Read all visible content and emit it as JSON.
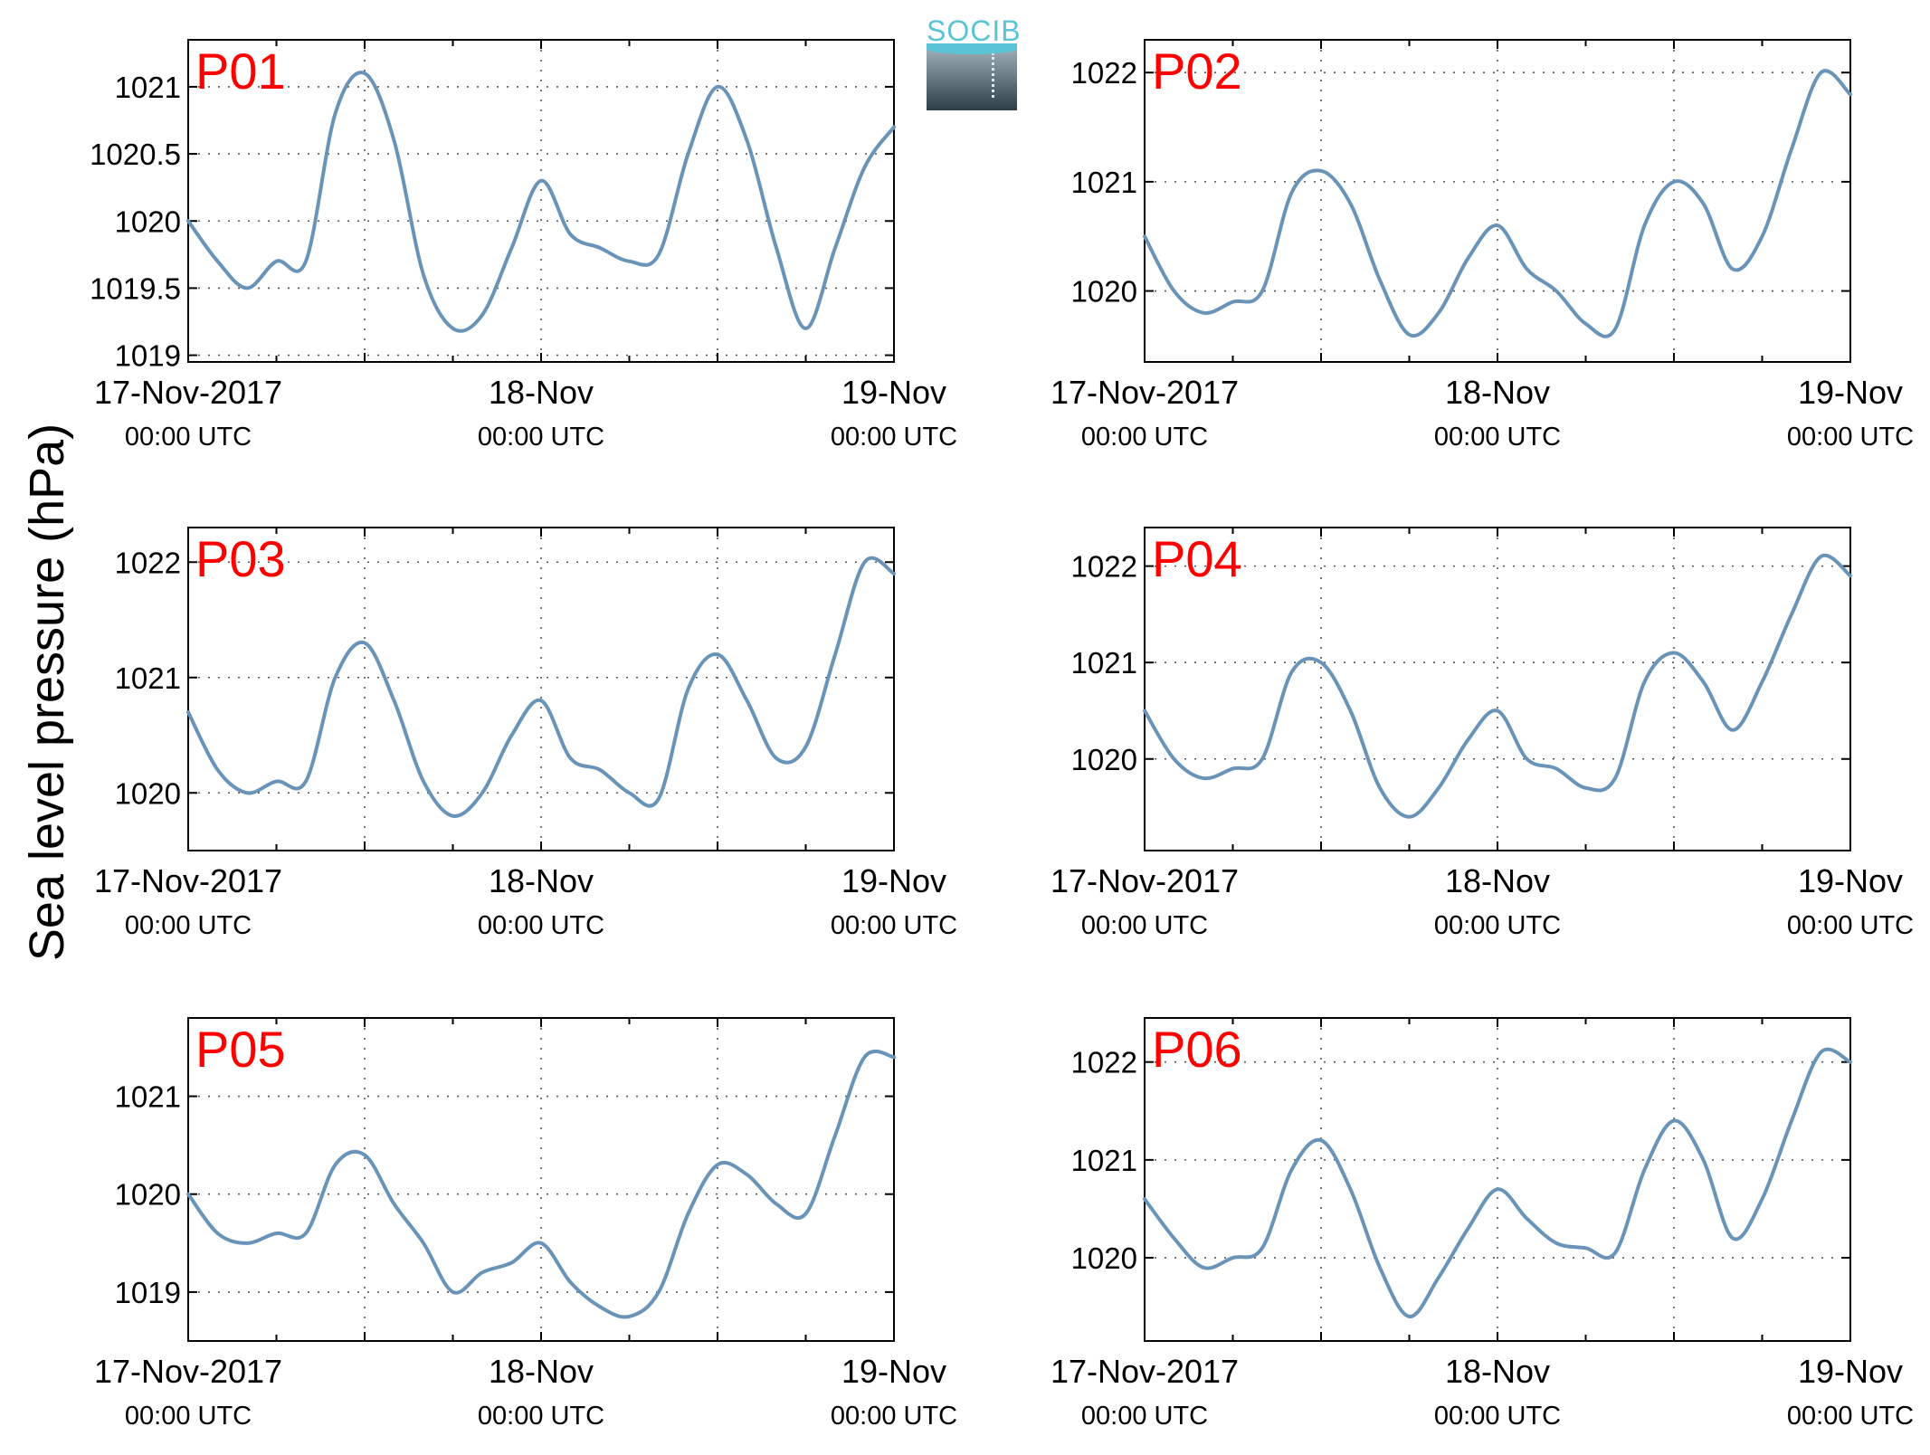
{
  "y_axis_label": "Sea level pressure (hPa)",
  "logo": {
    "text": "SOCIB"
  },
  "colors": {
    "line": "#6a93b8",
    "panel_label": "#ff0000",
    "grid": "#555555",
    "axis": "#000000"
  },
  "x_tick_labels": [
    {
      "line1": "17-Nov-2017",
      "line2": "00:00 UTC"
    },
    {
      "line1": "18-Nov",
      "line2": "00:00 UTC"
    },
    {
      "line1": "19-Nov",
      "line2": "00:00 UTC"
    }
  ],
  "chart_data": [
    {
      "type": "line",
      "title": "P01",
      "x_hours": [
        0,
        2,
        4,
        6,
        8,
        10,
        12,
        14,
        16,
        18,
        20,
        22,
        24,
        26,
        28,
        30,
        32,
        34,
        36,
        38,
        40,
        42,
        44,
        46,
        48
      ],
      "values": [
        1020.0,
        1019.7,
        1019.5,
        1019.7,
        1019.7,
        1020.8,
        1021.1,
        1020.6,
        1019.6,
        1019.2,
        1019.3,
        1019.8,
        1020.3,
        1019.9,
        1019.8,
        1019.7,
        1019.75,
        1020.5,
        1021.0,
        1020.6,
        1019.8,
        1019.2,
        1019.8,
        1020.4,
        1020.7
      ],
      "yticks": [
        1019,
        1019.5,
        1020,
        1020.5,
        1021
      ],
      "ylim": [
        1018.95,
        1021.35
      ],
      "grid": true
    },
    {
      "type": "line",
      "title": "P02",
      "x_hours": [
        0,
        2,
        4,
        6,
        8,
        10,
        12,
        14,
        16,
        18,
        20,
        22,
        24,
        26,
        28,
        30,
        32,
        34,
        36,
        38,
        40,
        42,
        44,
        46,
        48
      ],
      "values": [
        1020.5,
        1020.0,
        1019.8,
        1019.9,
        1020.0,
        1020.9,
        1021.1,
        1020.8,
        1020.1,
        1019.6,
        1019.8,
        1020.3,
        1020.6,
        1020.2,
        1020.0,
        1019.7,
        1019.65,
        1020.6,
        1021.0,
        1020.8,
        1020.2,
        1020.5,
        1021.3,
        1022.0,
        1021.8
      ],
      "yticks": [
        1020,
        1021,
        1022
      ],
      "ylim": [
        1019.35,
        1022.3
      ],
      "grid": true
    },
    {
      "type": "line",
      "title": "P03",
      "x_hours": [
        0,
        2,
        4,
        6,
        8,
        10,
        12,
        14,
        16,
        18,
        20,
        22,
        24,
        26,
        28,
        30,
        32,
        34,
        36,
        38,
        40,
        42,
        44,
        46,
        48
      ],
      "values": [
        1020.7,
        1020.2,
        1020.0,
        1020.1,
        1020.1,
        1021.0,
        1021.3,
        1020.8,
        1020.1,
        1019.8,
        1020.0,
        1020.5,
        1020.8,
        1020.3,
        1020.2,
        1020.0,
        1019.95,
        1020.9,
        1021.2,
        1020.8,
        1020.3,
        1020.4,
        1021.2,
        1022.0,
        1021.9
      ],
      "yticks": [
        1020,
        1021,
        1022
      ],
      "ylim": [
        1019.5,
        1022.3
      ],
      "grid": true
    },
    {
      "type": "line",
      "title": "P04",
      "x_hours": [
        0,
        2,
        4,
        6,
        8,
        10,
        12,
        14,
        16,
        18,
        20,
        22,
        24,
        26,
        28,
        30,
        32,
        34,
        36,
        38,
        40,
        42,
        44,
        46,
        48
      ],
      "values": [
        1020.5,
        1020.0,
        1019.8,
        1019.9,
        1020.0,
        1020.9,
        1021.0,
        1020.5,
        1019.7,
        1019.4,
        1019.7,
        1020.2,
        1020.5,
        1020.0,
        1019.9,
        1019.7,
        1019.8,
        1020.8,
        1021.1,
        1020.8,
        1020.3,
        1020.8,
        1021.5,
        1022.1,
        1021.9
      ],
      "yticks": [
        1020,
        1021,
        1022
      ],
      "ylim": [
        1019.05,
        1022.4
      ],
      "grid": true
    },
    {
      "type": "line",
      "title": "P05",
      "x_hours": [
        0,
        2,
        4,
        6,
        8,
        10,
        12,
        14,
        16,
        18,
        20,
        22,
        24,
        26,
        28,
        30,
        32,
        34,
        36,
        38,
        40,
        42,
        44,
        46,
        48
      ],
      "values": [
        1020.0,
        1019.6,
        1019.5,
        1019.6,
        1019.6,
        1020.3,
        1020.4,
        1019.9,
        1019.5,
        1019.0,
        1019.2,
        1019.3,
        1019.5,
        1019.1,
        1018.85,
        1018.75,
        1019.0,
        1019.8,
        1020.3,
        1020.2,
        1019.9,
        1019.8,
        1020.6,
        1021.4,
        1021.4
      ],
      "yticks": [
        1019,
        1020,
        1021
      ],
      "ylim": [
        1018.5,
        1021.8
      ],
      "grid": true
    },
    {
      "type": "line",
      "title": "P06",
      "x_hours": [
        0,
        2,
        4,
        6,
        8,
        10,
        12,
        14,
        16,
        18,
        20,
        22,
        24,
        26,
        28,
        30,
        32,
        34,
        36,
        38,
        40,
        42,
        44,
        46,
        48
      ],
      "values": [
        1020.6,
        1020.2,
        1019.9,
        1020.0,
        1020.1,
        1020.9,
        1021.2,
        1020.7,
        1019.9,
        1019.4,
        1019.8,
        1020.3,
        1020.7,
        1020.4,
        1020.15,
        1020.1,
        1020.05,
        1020.9,
        1021.4,
        1021.0,
        1020.2,
        1020.6,
        1021.4,
        1022.1,
        1022.0
      ],
      "yticks": [
        1020,
        1021,
        1022
      ],
      "ylim": [
        1019.15,
        1022.45
      ],
      "grid": true
    }
  ]
}
